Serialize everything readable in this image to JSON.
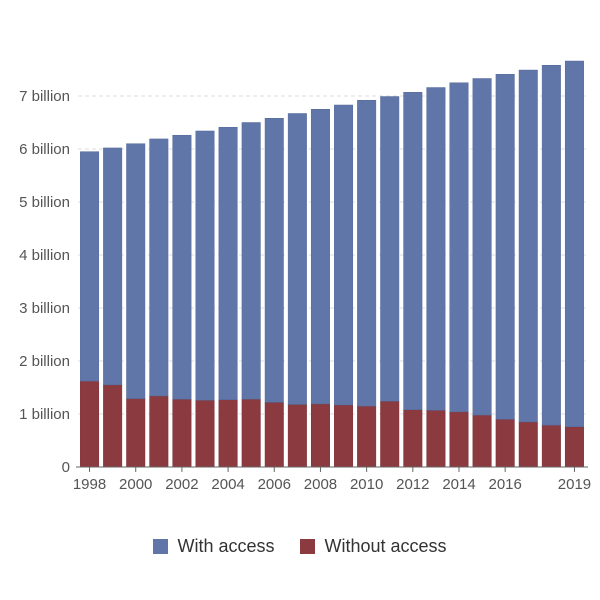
{
  "chart_data": {
    "type": "bar",
    "stacked": true,
    "categories": [
      "1998",
      "1999",
      "2000",
      "2001",
      "2002",
      "2003",
      "2004",
      "2005",
      "2006",
      "2007",
      "2008",
      "2009",
      "2010",
      "2011",
      "2012",
      "2013",
      "2014",
      "2015",
      "2016",
      "2017",
      "2018",
      "2019"
    ],
    "x_tick_labels": [
      "1998",
      "2000",
      "2002",
      "2004",
      "2006",
      "2008",
      "2010",
      "2012",
      "2014",
      "2016",
      "2019"
    ],
    "y_tick_labels": [
      "0",
      "1 billion",
      "2 billion",
      "3 billion",
      "4 billion",
      "5 billion",
      "6 billion",
      "7 billion"
    ],
    "y_ticks": [
      0,
      1,
      2,
      3,
      4,
      5,
      6,
      7
    ],
    "ylim": [
      0,
      7.8
    ],
    "grid": "horizontal dashed",
    "legend_position": "bottom",
    "series": [
      {
        "name": "Without access",
        "color": "#8b3a3f",
        "values": [
          1.62,
          1.55,
          1.29,
          1.34,
          1.28,
          1.26,
          1.27,
          1.28,
          1.22,
          1.18,
          1.19,
          1.17,
          1.15,
          1.24,
          1.08,
          1.07,
          1.04,
          0.98,
          0.9,
          0.85,
          0.79,
          0.76
        ]
      },
      {
        "name": "With access",
        "color": "#6176a8",
        "values": [
          4.33,
          4.47,
          4.81,
          4.85,
          4.98,
          5.08,
          5.14,
          5.22,
          5.36,
          5.49,
          5.56,
          5.66,
          5.77,
          5.75,
          5.99,
          6.09,
          6.21,
          6.35,
          6.51,
          6.64,
          6.79,
          6.9
        ]
      }
    ]
  },
  "legend": {
    "with_access": "With access",
    "without_access": "Without access"
  }
}
